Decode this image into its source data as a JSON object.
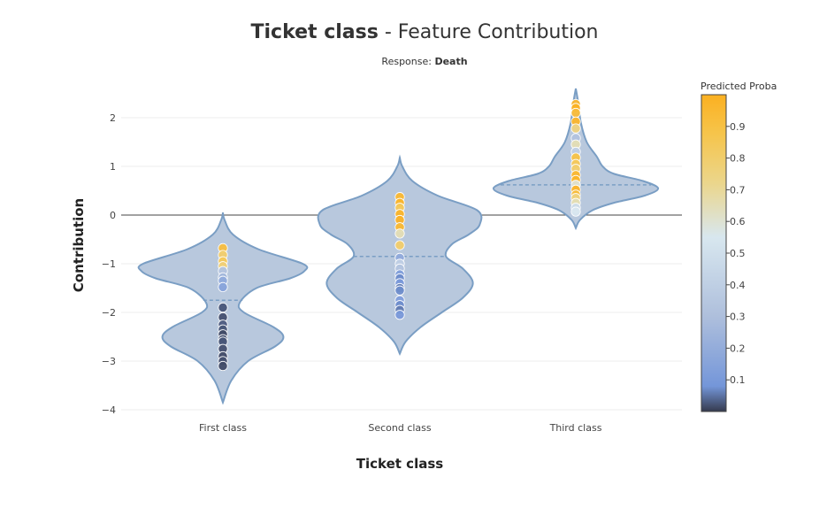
{
  "chart_data": {
    "type": "violin",
    "title_bold": "Ticket class",
    "title_rest": " - Feature Contribution",
    "subtitle_prefix": "Response: ",
    "subtitle_value": "Death",
    "xlabel": "Ticket class",
    "ylabel": "Contribution",
    "ylim": [
      -4.1,
      2.6
    ],
    "yticks": [
      2,
      1,
      0,
      -1,
      -2,
      -3,
      -4
    ],
    "ytick_labels": [
      "2",
      "1",
      "0",
      "−1",
      "−2",
      "−3",
      "−4"
    ],
    "categories": [
      "First class",
      "Second class",
      "Third class"
    ],
    "grid": true,
    "zero_line": true,
    "colorbar": {
      "title": "Predicted Proba",
      "range": [
        0,
        1
      ],
      "ticks": [
        0.9,
        0.8,
        0.7,
        0.6,
        0.5,
        0.4,
        0.3,
        0.2,
        0.1
      ],
      "tick_labels": [
        "0.9",
        "0.8",
        "0.7",
        "0.6",
        "0.5",
        "0.4",
        "0.3",
        "0.2",
        "0.1"
      ],
      "colors": [
        "#353a4e",
        "#7496d9",
        "#aebfdc",
        "#d8e7ef",
        "#ebd68c",
        "#f6c44a",
        "#fbb021"
      ]
    },
    "violins": [
      {
        "category": "First class",
        "min": -3.85,
        "max": 0.05,
        "median": -1.75,
        "profile": [
          [
            0.05,
            0.0
          ],
          [
            -0.1,
            0.02
          ],
          [
            -0.4,
            0.12
          ],
          [
            -0.7,
            0.42
          ],
          [
            -1.0,
            0.95
          ],
          [
            -1.15,
            0.97
          ],
          [
            -1.3,
            0.8
          ],
          [
            -1.5,
            0.4
          ],
          [
            -1.8,
            0.2
          ],
          [
            -2.0,
            0.25
          ],
          [
            -2.3,
            0.6
          ],
          [
            -2.5,
            0.72
          ],
          [
            -2.7,
            0.62
          ],
          [
            -3.0,
            0.3
          ],
          [
            -3.4,
            0.1
          ],
          [
            -3.85,
            0.0
          ]
        ],
        "points": [
          {
            "y": -0.68,
            "p": 0.88
          },
          {
            "y": -0.82,
            "p": 0.75
          },
          {
            "y": -0.95,
            "p": 0.8
          },
          {
            "y": -1.05,
            "p": 0.72
          },
          {
            "y": -1.15,
            "p": 0.35
          },
          {
            "y": -1.28,
            "p": 0.3
          },
          {
            "y": -1.35,
            "p": 0.25
          },
          {
            "y": -1.48,
            "p": 0.22
          },
          {
            "y": -1.9,
            "p": 0.05
          },
          {
            "y": -2.1,
            "p": 0.04
          },
          {
            "y": -2.25,
            "p": 0.06
          },
          {
            "y": -2.35,
            "p": 0.05
          },
          {
            "y": -2.45,
            "p": 0.03
          },
          {
            "y": -2.55,
            "p": 0.04
          },
          {
            "y": -2.6,
            "p": 0.05
          },
          {
            "y": -2.75,
            "p": 0.04
          },
          {
            "y": -2.9,
            "p": 0.03
          },
          {
            "y": -3.0,
            "p": 0.04
          },
          {
            "y": -3.1,
            "p": 0.03
          }
        ]
      },
      {
        "category": "Second class",
        "min": -2.85,
        "max": 1.18,
        "median": -0.85,
        "profile": [
          [
            1.18,
            0.0
          ],
          [
            1.0,
            0.03
          ],
          [
            0.7,
            0.15
          ],
          [
            0.4,
            0.45
          ],
          [
            0.1,
            0.92
          ],
          [
            -0.2,
            0.95
          ],
          [
            -0.4,
            0.82
          ],
          [
            -0.6,
            0.62
          ],
          [
            -0.85,
            0.55
          ],
          [
            -1.1,
            0.75
          ],
          [
            -1.4,
            0.87
          ],
          [
            -1.7,
            0.75
          ],
          [
            -2.0,
            0.5
          ],
          [
            -2.3,
            0.25
          ],
          [
            -2.6,
            0.07
          ],
          [
            -2.85,
            0.0
          ]
        ],
        "points": [
          {
            "y": 0.37,
            "p": 0.93
          },
          {
            "y": 0.25,
            "p": 0.97
          },
          {
            "y": 0.15,
            "p": 0.8
          },
          {
            "y": 0.02,
            "p": 0.97
          },
          {
            "y": -0.1,
            "p": 0.98
          },
          {
            "y": -0.25,
            "p": 0.93
          },
          {
            "y": -0.38,
            "p": 0.6
          },
          {
            "y": -0.62,
            "p": 0.75
          },
          {
            "y": -0.88,
            "p": 0.25
          },
          {
            "y": -1.0,
            "p": 0.4
          },
          {
            "y": -1.1,
            "p": 0.35
          },
          {
            "y": -1.22,
            "p": 0.2
          },
          {
            "y": -1.3,
            "p": 0.15
          },
          {
            "y": -1.4,
            "p": 0.18
          },
          {
            "y": -1.5,
            "p": 0.12
          },
          {
            "y": -1.55,
            "p": 0.15
          },
          {
            "y": -1.75,
            "p": 0.2
          },
          {
            "y": -1.85,
            "p": 0.15
          },
          {
            "y": -1.95,
            "p": 0.12
          },
          {
            "y": -2.05,
            "p": 0.18
          }
        ]
      },
      {
        "category": "Third class",
        "min": -0.27,
        "max": 2.6,
        "median": 0.62,
        "profile": [
          [
            2.6,
            0.0
          ],
          [
            2.3,
            0.03
          ],
          [
            1.9,
            0.06
          ],
          [
            1.5,
            0.13
          ],
          [
            1.2,
            0.25
          ],
          [
            1.0,
            0.32
          ],
          [
            0.85,
            0.45
          ],
          [
            0.7,
            0.8
          ],
          [
            0.55,
            0.98
          ],
          [
            0.4,
            0.82
          ],
          [
            0.25,
            0.45
          ],
          [
            0.1,
            0.2
          ],
          [
            -0.1,
            0.05
          ],
          [
            -0.27,
            0.0
          ]
        ],
        "points": [
          {
            "y": 2.28,
            "p": 0.95
          },
          {
            "y": 2.2,
            "p": 0.99
          },
          {
            "y": 2.1,
            "p": 0.9
          },
          {
            "y": 1.92,
            "p": 0.96
          },
          {
            "y": 1.78,
            "p": 0.7
          },
          {
            "y": 1.58,
            "p": 0.35
          },
          {
            "y": 1.45,
            "p": 0.6
          },
          {
            "y": 1.3,
            "p": 0.4
          },
          {
            "y": 1.18,
            "p": 0.85
          },
          {
            "y": 1.05,
            "p": 0.8
          },
          {
            "y": 0.95,
            "p": 0.75
          },
          {
            "y": 0.82,
            "p": 0.95
          },
          {
            "y": 0.72,
            "p": 0.97
          },
          {
            "y": 0.62,
            "p": 0.55
          },
          {
            "y": 0.52,
            "p": 0.98
          },
          {
            "y": 0.42,
            "p": 0.88
          },
          {
            "y": 0.35,
            "p": 0.7
          },
          {
            "y": 0.25,
            "p": 0.6
          },
          {
            "y": 0.15,
            "p": 0.45
          },
          {
            "y": 0.07,
            "p": 0.5
          }
        ]
      }
    ]
  }
}
